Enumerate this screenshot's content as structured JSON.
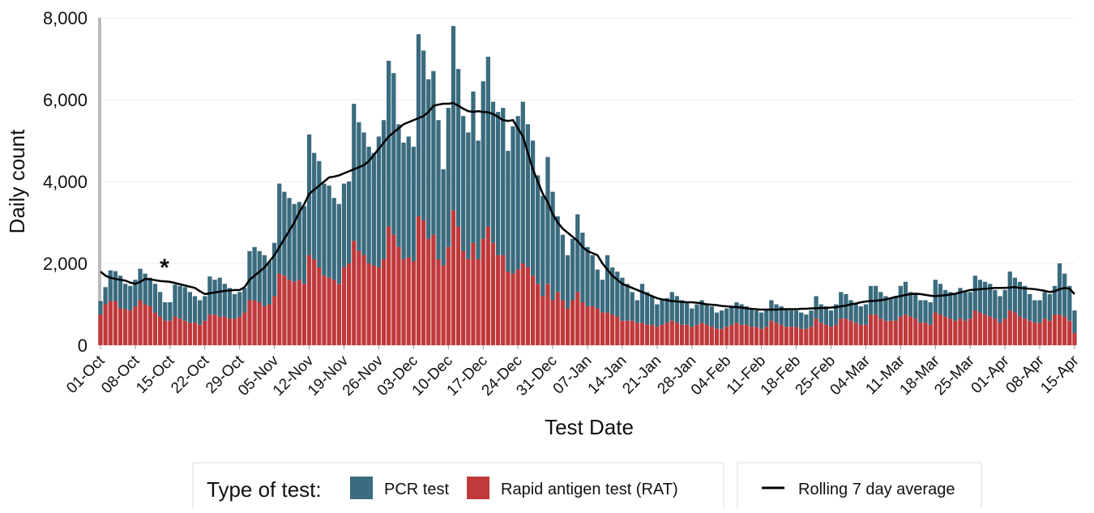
{
  "chart_data": {
    "type": "bar",
    "stacked": true,
    "y_label": "Daily count",
    "x_label": "Test Date",
    "legend_title": "Type of test:",
    "annotation": "*",
    "grid": true,
    "ylim": [
      0,
      8000
    ],
    "yticks": [
      0,
      {
        "value": 2000,
        "label": "2,000"
      },
      {
        "value": 4000,
        "label": "4,000"
      },
      {
        "value": 6000,
        "label": "6,000"
      },
      {
        "value": 8000,
        "label": "8,000"
      }
    ],
    "categories": [
      "01-Oct",
      null,
      null,
      null,
      null,
      null,
      null,
      "08-Oct",
      null,
      null,
      null,
      null,
      null,
      null,
      "15-Oct",
      null,
      null,
      null,
      null,
      null,
      null,
      "22-Oct",
      null,
      null,
      null,
      null,
      null,
      null,
      "29-Oct",
      null,
      null,
      null,
      null,
      null,
      null,
      "05-Nov",
      null,
      null,
      null,
      null,
      null,
      null,
      "12-Nov",
      null,
      null,
      null,
      null,
      null,
      null,
      "19-Nov",
      null,
      null,
      null,
      null,
      null,
      null,
      "26-Nov",
      null,
      null,
      null,
      null,
      null,
      null,
      "03-Dec",
      null,
      null,
      null,
      null,
      null,
      null,
      "10-Dec",
      null,
      null,
      null,
      null,
      null,
      null,
      "17-Dec",
      null,
      null,
      null,
      null,
      null,
      null,
      "24-Dec",
      null,
      null,
      null,
      null,
      null,
      null,
      "31-Dec",
      null,
      null,
      null,
      null,
      null,
      null,
      "07-Jan",
      null,
      null,
      null,
      null,
      null,
      null,
      "14-Jan",
      null,
      null,
      null,
      null,
      null,
      null,
      "21-Jan",
      null,
      null,
      null,
      null,
      null,
      null,
      "28-Jan",
      null,
      null,
      null,
      null,
      null,
      null,
      "04-Feb",
      null,
      null,
      null,
      null,
      null,
      null,
      "11-Feb",
      null,
      null,
      null,
      null,
      null,
      null,
      "18-Feb",
      null,
      null,
      null,
      null,
      null,
      null,
      "25-Feb",
      null,
      null,
      null,
      null,
      null,
      null,
      "04-Mar",
      null,
      null,
      null,
      null,
      null,
      null,
      "11-Mar",
      null,
      null,
      null,
      null,
      null,
      null,
      "18-Mar",
      null,
      null,
      null,
      null,
      null,
      null,
      "25-Mar",
      null,
      null,
      null,
      null,
      null,
      null,
      "01-Apr",
      null,
      null,
      null,
      null,
      null,
      null,
      "08-Apr",
      null,
      null,
      null,
      null,
      null,
      null,
      "15-Apr"
    ],
    "series": [
      {
        "name": "Rapid antigen test (RAT)",
        "color": "#c0393b",
        "values": [
          750,
          1000,
          1080,
          1080,
          900,
          880,
          850,
          950,
          1100,
          1000,
          950,
          800,
          700,
          600,
          600,
          700,
          650,
          600,
          550,
          550,
          500,
          600,
          750,
          750,
          700,
          700,
          650,
          650,
          700,
          800,
          1100,
          1100,
          1050,
          950,
          1000,
          1200,
          1750,
          1700,
          1600,
          1550,
          1600,
          1500,
          2200,
          2100,
          1900,
          1700,
          1650,
          1600,
          1500,
          1900,
          2000,
          2550,
          2300,
          2200,
          2000,
          1950,
          1900,
          2100,
          2900,
          2700,
          2400,
          2100,
          2150,
          2050,
          3150,
          3050,
          2600,
          2700,
          2100,
          1950,
          2400,
          3300,
          2900,
          2300,
          2100,
          2500,
          2100,
          2600,
          2900,
          2500,
          2200,
          2200,
          1800,
          1750,
          1850,
          2000,
          1900,
          1700,
          1500,
          1200,
          1500,
          1100,
          1300,
          1100,
          900,
          1100,
          1300,
          1050,
          950,
          950,
          900,
          800,
          800,
          750,
          700,
          600,
          600,
          600,
          550,
          550,
          500,
          500,
          450,
          500,
          550,
          600,
          550,
          500,
          500,
          450,
          500,
          550,
          500,
          450,
          400,
          400,
          450,
          500,
          550,
          500,
          500,
          450,
          450,
          400,
          450,
          600,
          550,
          500,
          450,
          450,
          450,
          400,
          400,
          450,
          650,
          550,
          500,
          450,
          500,
          650,
          650,
          600,
          550,
          500,
          500,
          750,
          750,
          650,
          600,
          600,
          600,
          700,
          750,
          700,
          650,
          550,
          550,
          500,
          800,
          750,
          700,
          650,
          600,
          650,
          600,
          650,
          850,
          800,
          750,
          700,
          650,
          550,
          650,
          850,
          800,
          700,
          650,
          600,
          550,
          550,
          650,
          600,
          750,
          750,
          700,
          600,
          300
        ]
      },
      {
        "name": "PCR test",
        "color": "#3a6b7e",
        "values": [
          330,
          420,
          750,
          730,
          800,
          620,
          600,
          650,
          770,
          750,
          700,
          700,
          600,
          450,
          450,
          780,
          800,
          820,
          750,
          650,
          600,
          600,
          930,
          850,
          950,
          800,
          750,
          600,
          600,
          600,
          1200,
          1300,
          1250,
          1250,
          1050,
          1300,
          2200,
          2050,
          2000,
          1900,
          1900,
          1900,
          2950,
          2600,
          2600,
          2250,
          2250,
          2000,
          1950,
          2050,
          2000,
          3350,
          3150,
          3000,
          2850,
          2750,
          3200,
          3400,
          4050,
          3950,
          3000,
          2850,
          2950,
          2800,
          4450,
          4150,
          3900,
          4000,
          3400,
          2350,
          3400,
          4500,
          3850,
          3300,
          3100,
          3700,
          2900,
          3850,
          4150,
          3450,
          3500,
          3600,
          2950,
          3600,
          3750,
          3950,
          3500,
          3300,
          2650,
          2450,
          3100,
          2650,
          1850,
          1600,
          1300,
          1500,
          1900,
          1700,
          1450,
          1250,
          950,
          800,
          1400,
          1150,
          1100,
          1050,
          900,
          700,
          550,
          950,
          800,
          700,
          550,
          600,
          600,
          700,
          650,
          600,
          550,
          450,
          500,
          550,
          500,
          500,
          400,
          450,
          450,
          450,
          500,
          500,
          450,
          450,
          400,
          400,
          400,
          500,
          450,
          450,
          450,
          400,
          400,
          400,
          350,
          400,
          550,
          450,
          450,
          400,
          500,
          650,
          600,
          500,
          450,
          450,
          500,
          700,
          700,
          650,
          600,
          550,
          600,
          750,
          800,
          600,
          600,
          550,
          550,
          550,
          800,
          750,
          650,
          650,
          650,
          750,
          700,
          650,
          850,
          800,
          800,
          800,
          700,
          650,
          700,
          950,
          850,
          850,
          800,
          650,
          550,
          550,
          650,
          650,
          700,
          1250,
          1050,
          850,
          550
        ]
      },
      {
        "name": "Rolling 7 day average",
        "type": "line",
        "color": "#000000",
        "values": [
          1800,
          1700,
          1650,
          1620,
          1600,
          1580,
          1530,
          1500,
          1550,
          1620,
          1610,
          1590,
          1570,
          1560,
          1550,
          1520,
          1490,
          1460,
          1430,
          1400,
          1320,
          1250,
          1270,
          1290,
          1310,
          1330,
          1340,
          1350,
          1350,
          1420,
          1600,
          1700,
          1800,
          1900,
          2050,
          2200,
          2400,
          2600,
          2800,
          3000,
          3250,
          3450,
          3700,
          3800,
          3900,
          4000,
          4100,
          4120,
          4150,
          4200,
          4250,
          4300,
          4350,
          4400,
          4500,
          4650,
          4800,
          4950,
          5100,
          5200,
          5300,
          5400,
          5450,
          5500,
          5550,
          5600,
          5700,
          5850,
          5880,
          5900,
          5900,
          5920,
          5850,
          5780,
          5720,
          5700,
          5720,
          5700,
          5690,
          5650,
          5580,
          5500,
          5480,
          5500,
          5300,
          5100,
          4700,
          4300,
          4000,
          3700,
          3500,
          3200,
          3000,
          2850,
          2750,
          2650,
          2550,
          2400,
          2300,
          2250,
          2200,
          2000,
          1850,
          1700,
          1600,
          1500,
          1450,
          1400,
          1350,
          1300,
          1250,
          1200,
          1150,
          1120,
          1100,
          1080,
          1070,
          1060,
          1050,
          1050,
          1040,
          1020,
          1000,
          990,
          980,
          960,
          950,
          940,
          930,
          920,
          900,
          890,
          880,
          870,
          870,
          870,
          870,
          880,
          880,
          880,
          880,
          890,
          890,
          900,
          900,
          910,
          910,
          920,
          930,
          950,
          970,
          1000,
          1020,
          1050,
          1070,
          1080,
          1090,
          1100,
          1120,
          1150,
          1180,
          1200,
          1230,
          1250,
          1260,
          1250,
          1230,
          1210,
          1200,
          1210,
          1220,
          1240,
          1260,
          1290,
          1320,
          1350,
          1360,
          1370,
          1380,
          1390,
          1400,
          1400,
          1400,
          1410,
          1420,
          1400,
          1390,
          1380,
          1370,
          1350,
          1330,
          1300,
          1320,
          1370,
          1400,
          1380,
          1250
        ]
      }
    ]
  }
}
